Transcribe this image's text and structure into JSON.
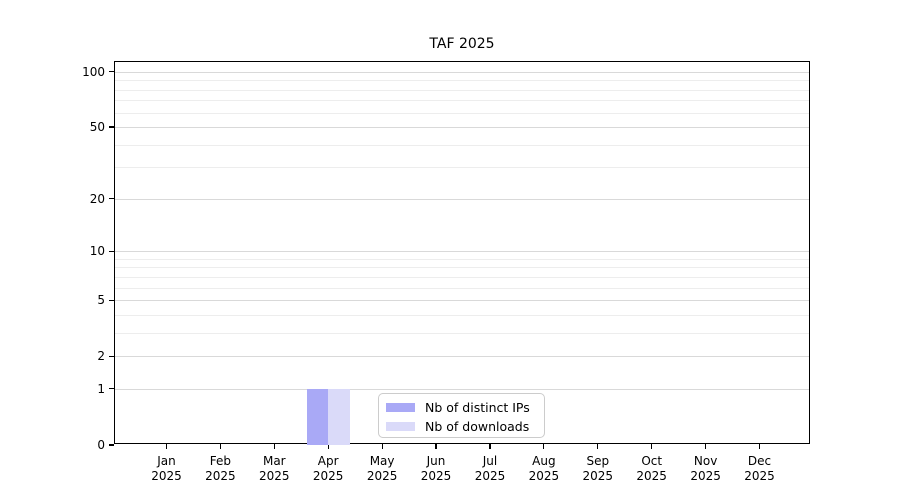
{
  "chart_data": {
    "type": "bar",
    "title": "TAF 2025",
    "categories": [
      "Jan",
      "Feb",
      "Mar",
      "Apr",
      "May",
      "Jun",
      "Jul",
      "Aug",
      "Sep",
      "Oct",
      "Nov",
      "Dec"
    ],
    "year_label": "2025",
    "series": [
      {
        "name": "Nb of distinct IPs",
        "color": "#a9a9f6",
        "values": [
          0,
          0,
          0,
          1,
          0,
          0,
          0,
          0,
          0,
          0,
          0,
          0
        ]
      },
      {
        "name": "Nb of downloads",
        "color": "#dadaf9",
        "values": [
          0,
          0,
          0,
          1,
          0,
          0,
          0,
          0,
          0,
          0,
          0,
          0
        ]
      }
    ],
    "xlabel": "",
    "ylabel": "",
    "y_ticks": [
      0,
      1,
      2,
      5,
      10,
      20,
      50,
      100
    ],
    "y_minor_ticks": [
      3,
      4,
      6,
      7,
      8,
      9,
      30,
      40,
      60,
      70,
      80,
      90
    ],
    "y_scale": "log10(1+value)",
    "ylim": [
      0,
      113
    ],
    "grid": "horizontal, major and minor, light gray",
    "legend_position": "lower center, inside plot",
    "bar_group_width_fraction": 0.8,
    "background_color": "#ffffff",
    "spine_color": "#000000"
  },
  "legend": {
    "items": [
      {
        "label": "Nb of distinct IPs",
        "color": "#a9a9f6"
      },
      {
        "label": "Nb of downloads",
        "color": "#dadaf9"
      }
    ]
  }
}
